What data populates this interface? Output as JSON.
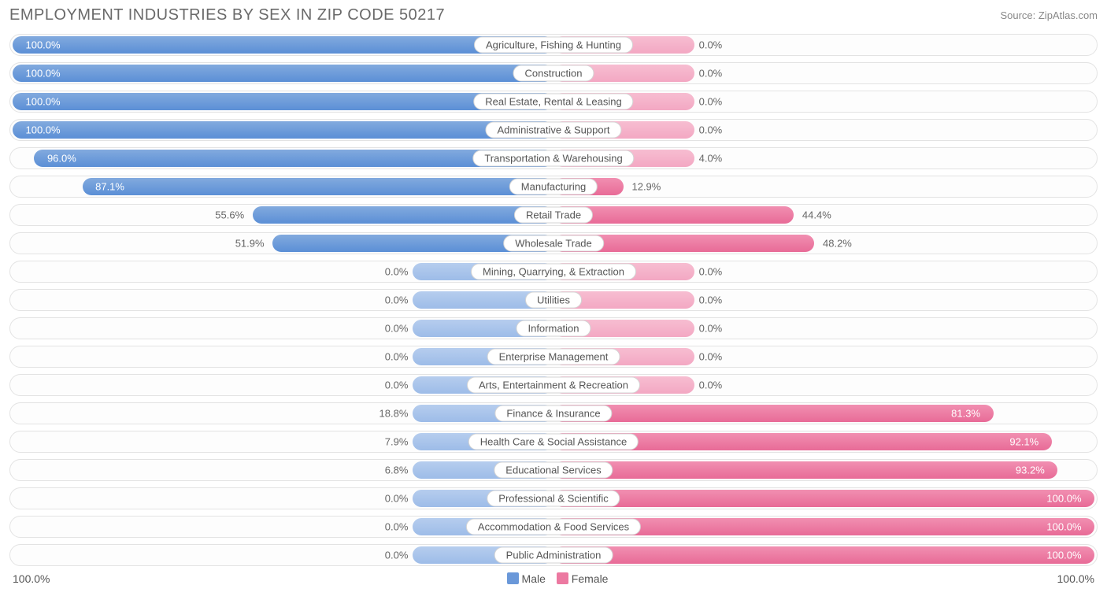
{
  "title": "EMPLOYMENT INDUSTRIES BY SEX IN ZIP CODE 50217",
  "source": "Source: ZipAtlas.com",
  "colors": {
    "male": "#6a98d9",
    "female": "#ec79a1",
    "male_pale": "#a9c4ea",
    "female_pale": "#f5b2ca",
    "text_inside": "#ffffff",
    "text_outside": "#666666",
    "row_border": "#e3e3e3",
    "background": "#ffffff"
  },
  "axis": {
    "left": "100.0%",
    "right": "100.0%"
  },
  "legend": {
    "male": "Male",
    "female": "Female"
  },
  "chart": {
    "type": "diverging-bar",
    "unit": "%",
    "stub_width_pct": 13,
    "rows": [
      {
        "label": "Agriculture, Fishing & Hunting",
        "male": 100.0,
        "female": 0.0,
        "female_stub": true
      },
      {
        "label": "Construction",
        "male": 100.0,
        "female": 0.0,
        "female_stub": true
      },
      {
        "label": "Real Estate, Rental & Leasing",
        "male": 100.0,
        "female": 0.0,
        "female_stub": true
      },
      {
        "label": "Administrative & Support",
        "male": 100.0,
        "female": 0.0,
        "female_stub": true
      },
      {
        "label": "Transportation & Warehousing",
        "male": 96.0,
        "female": 4.0,
        "female_stub": true
      },
      {
        "label": "Manufacturing",
        "male": 87.1,
        "female": 12.9
      },
      {
        "label": "Retail Trade",
        "male": 55.6,
        "female": 44.4
      },
      {
        "label": "Wholesale Trade",
        "male": 51.9,
        "female": 48.2
      },
      {
        "label": "Mining, Quarrying, & Extraction",
        "male": 0.0,
        "female": 0.0,
        "male_stub": true,
        "female_stub": true
      },
      {
        "label": "Utilities",
        "male": 0.0,
        "female": 0.0,
        "male_stub": true,
        "female_stub": true
      },
      {
        "label": "Information",
        "male": 0.0,
        "female": 0.0,
        "male_stub": true,
        "female_stub": true
      },
      {
        "label": "Enterprise Management",
        "male": 0.0,
        "female": 0.0,
        "male_stub": true,
        "female_stub": true
      },
      {
        "label": "Arts, Entertainment & Recreation",
        "male": 0.0,
        "female": 0.0,
        "male_stub": true,
        "female_stub": true
      },
      {
        "label": "Finance & Insurance",
        "male": 18.8,
        "female": 81.3,
        "male_stub": true
      },
      {
        "label": "Health Care & Social Assistance",
        "male": 7.9,
        "female": 92.1,
        "male_stub": true
      },
      {
        "label": "Educational Services",
        "male": 6.8,
        "female": 93.2,
        "male_stub": true
      },
      {
        "label": "Professional & Scientific",
        "male": 0.0,
        "female": 100.0,
        "male_stub": true
      },
      {
        "label": "Accommodation & Food Services",
        "male": 0.0,
        "female": 100.0,
        "male_stub": true
      },
      {
        "label": "Public Administration",
        "male": 0.0,
        "female": 100.0,
        "male_stub": true
      }
    ]
  }
}
